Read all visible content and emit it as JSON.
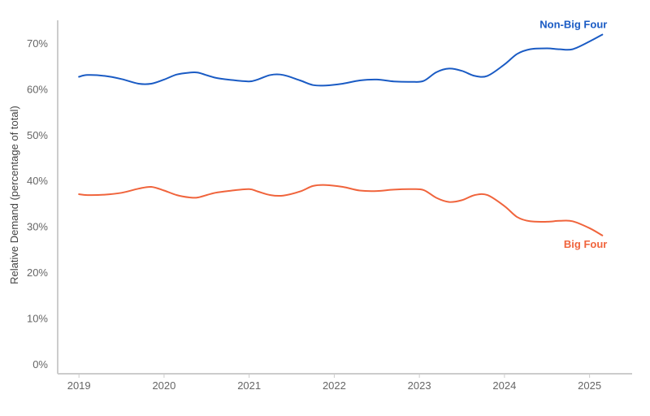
{
  "chart_data": {
    "type": "line",
    "title": "",
    "xlabel": "",
    "ylabel": "Relative Demand (percentage of total)",
    "x_ticks": [
      "2019",
      "2020",
      "2021",
      "2022",
      "2023",
      "2024",
      "2025"
    ],
    "y_ticks": [
      "0%",
      "10%",
      "20%",
      "30%",
      "40%",
      "50%",
      "60%",
      "70%"
    ],
    "xlim": [
      2018.75,
      2025.5
    ],
    "ylim": [
      0,
      76
    ],
    "grid": false,
    "legend": "inline labels at line ends",
    "x": [
      2019.0,
      2019.1,
      2019.3,
      2019.5,
      2019.7,
      2019.85,
      2020.0,
      2020.15,
      2020.3,
      2020.4,
      2020.6,
      2020.8,
      2021.0,
      2021.1,
      2021.25,
      2021.4,
      2021.6,
      2021.75,
      2021.9,
      2022.1,
      2022.3,
      2022.5,
      2022.7,
      2022.9,
      2023.05,
      2023.2,
      2023.35,
      2023.5,
      2023.65,
      2023.8,
      2024.0,
      2024.15,
      2024.3,
      2024.5,
      2024.65,
      2024.8,
      2025.0,
      2025.15
    ],
    "series": [
      {
        "name": "Non-Big Four",
        "color": "#1a5bc4",
        "values": [
          62.8,
          63.2,
          63.0,
          62.3,
          61.3,
          61.3,
          62.2,
          63.3,
          63.7,
          63.7,
          62.6,
          62.1,
          61.8,
          62.2,
          63.2,
          63.2,
          62.0,
          61.0,
          60.9,
          61.3,
          62.0,
          62.2,
          61.8,
          61.7,
          61.9,
          63.8,
          64.6,
          64.1,
          63.0,
          63.0,
          65.5,
          67.8,
          68.8,
          69.0,
          68.8,
          68.8,
          70.5,
          72.0
        ]
      },
      {
        "name": "Big Four",
        "color": "#f0643c",
        "values": [
          37.2,
          37.0,
          37.1,
          37.5,
          38.4,
          38.8,
          38.0,
          37.0,
          36.5,
          36.5,
          37.5,
          38.0,
          38.3,
          37.8,
          37.0,
          36.9,
          37.8,
          39.0,
          39.2,
          38.8,
          38.0,
          37.9,
          38.2,
          38.3,
          38.1,
          36.4,
          35.5,
          35.9,
          37.0,
          37.0,
          34.6,
          32.2,
          31.3,
          31.2,
          31.4,
          31.3,
          29.8,
          28.2
        ]
      }
    ]
  }
}
